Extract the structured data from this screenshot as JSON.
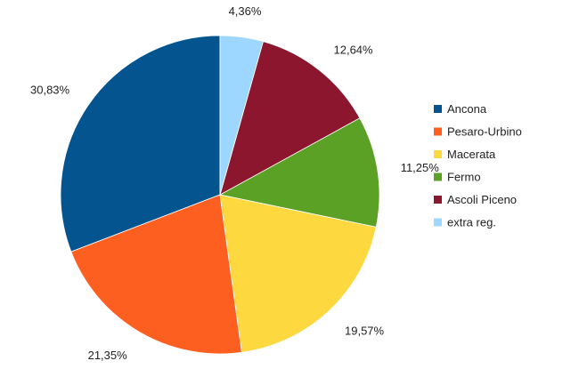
{
  "chart_data": {
    "type": "pie",
    "categories": [
      "Ancona",
      "Pesaro-Urbino",
      "Macerata",
      "Fermo",
      "Ascoli Piceno",
      "extra reg."
    ],
    "values": [
      30.83,
      21.35,
      19.57,
      11.25,
      12.64,
      4.36
    ],
    "value_labels": [
      "30,83%",
      "21,35%",
      "19,57%",
      "11,25%",
      "12,64%",
      "4,36%"
    ],
    "colors": [
      "#04558f",
      "#fd5f21",
      "#fed83f",
      "#5ba126",
      "#8d162f",
      "#9dd6fe"
    ],
    "start": "12 o'clock",
    "direction": "counterclockwise",
    "legend_position": "right"
  }
}
